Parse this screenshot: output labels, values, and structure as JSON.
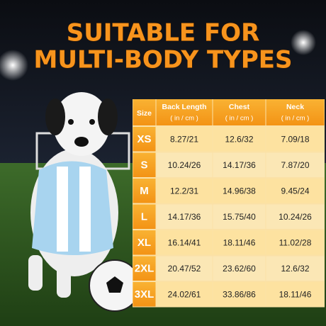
{
  "title": [
    "SUITABLE FOR",
    "MULTI-BODY TYPES"
  ],
  "table": {
    "header": [
      "Size",
      {
        "label": "Back Length",
        "unit": "( in / cm )"
      },
      {
        "label": "Chest",
        "unit": "( in / cm )"
      },
      {
        "label": "Neck",
        "unit": "( in / cm )"
      }
    ],
    "rows": [
      [
        "XS",
        "8.27/21",
        "12.6/32",
        "7.09/18"
      ],
      [
        "S",
        "10.24/26",
        "14.17/36",
        "7.87/20"
      ],
      [
        "M",
        "12.2/31",
        "14.96/38",
        "9.45/24"
      ],
      [
        "L",
        "14.17/36",
        "15.75/40",
        "10.24/26"
      ],
      [
        "XL",
        "16.14/41",
        "18.11/46",
        "11.02/28"
      ],
      [
        "2XL",
        "20.47/52",
        "23.62/60",
        "12.6/32"
      ],
      [
        "3XL",
        "24.02/61",
        "33.86/86",
        "18.11/46"
      ]
    ]
  }
}
